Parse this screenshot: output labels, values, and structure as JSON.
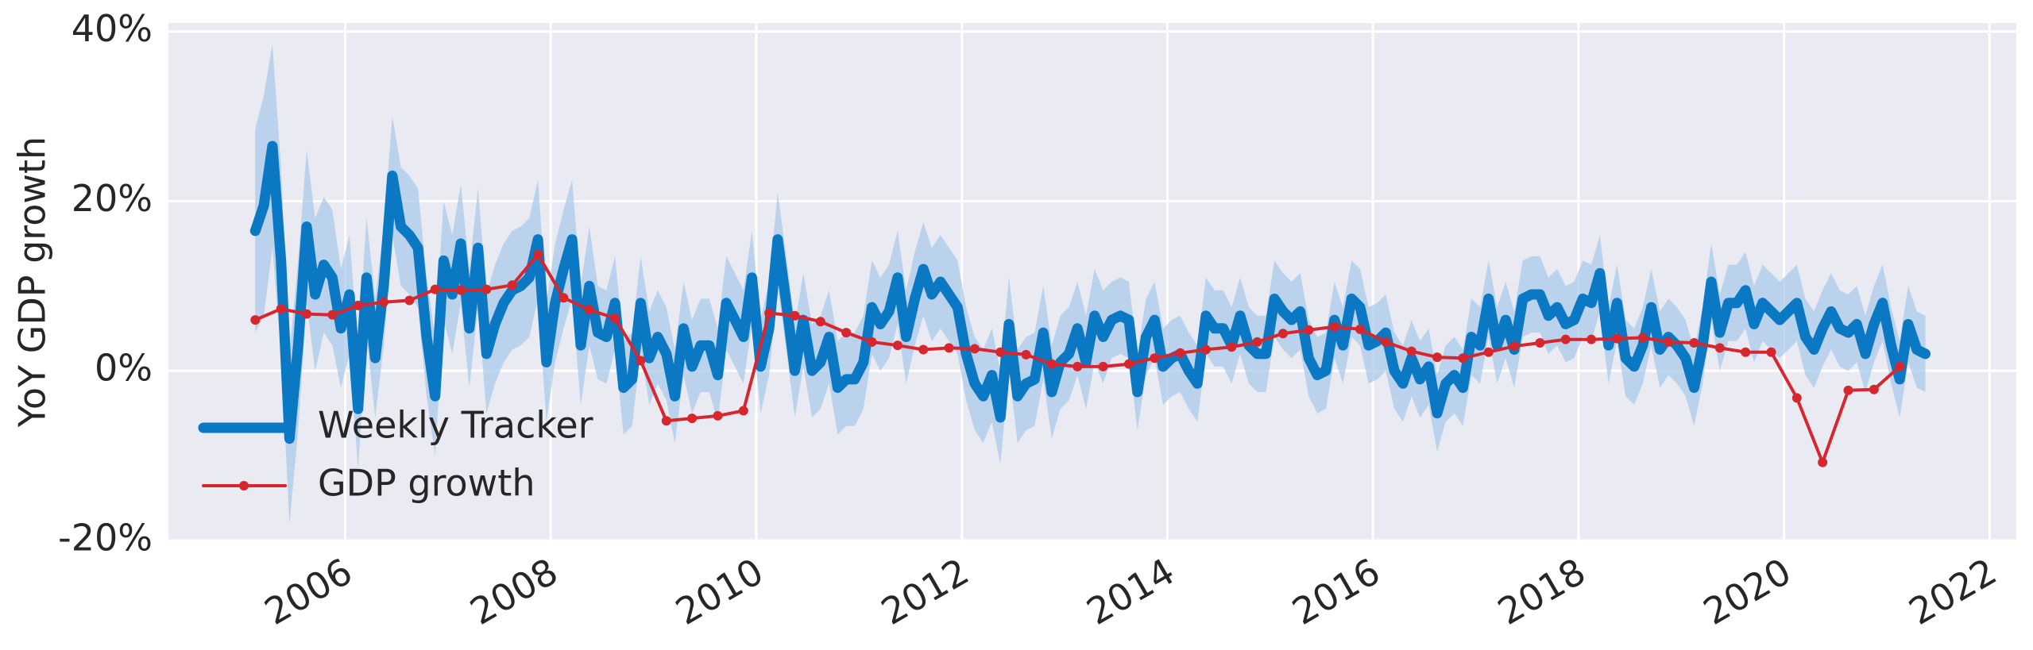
{
  "chart_data": {
    "type": "line",
    "ylabel": "YoY GDP growth",
    "xlim": [
      2004.28,
      2022.26
    ],
    "ylim": [
      -20,
      41
    ],
    "xticks": [
      2006,
      2008,
      2010,
      2012,
      2014,
      2016,
      2018,
      2020,
      2022
    ],
    "yticks": [
      {
        "value": -20,
        "label": "-20%"
      },
      {
        "value": 0,
        "label": "0%"
      },
      {
        "value": 20,
        "label": "20%"
      },
      {
        "value": 40,
        "label": "40%"
      }
    ],
    "grid": true,
    "legend": "lower left",
    "series": [
      {
        "name": "Weekly Tracker",
        "color": "#0a78c2",
        "band_color": "#a9c9ea",
        "x": [
          2005.125,
          2005.208,
          2005.292,
          2005.375,
          2005.458,
          2005.542,
          2005.625,
          2005.708,
          2005.792,
          2005.875,
          2005.958,
          2006.042,
          2006.125,
          2006.208,
          2006.292,
          2006.375,
          2006.458,
          2006.542,
          2006.625,
          2006.708,
          2006.792,
          2006.875,
          2006.958,
          2007.042,
          2007.125,
          2007.208,
          2007.292,
          2007.375,
          2007.458,
          2007.542,
          2007.625,
          2007.708,
          2007.792,
          2007.875,
          2007.958,
          2008.042,
          2008.125,
          2008.208,
          2008.292,
          2008.375,
          2008.458,
          2008.542,
          2008.625,
          2008.708,
          2008.792,
          2008.875,
          2008.958,
          2009.042,
          2009.125,
          2009.208,
          2009.292,
          2009.375,
          2009.458,
          2009.542,
          2009.625,
          2009.708,
          2009.792,
          2009.875,
          2009.958,
          2010.042,
          2010.125,
          2010.208,
          2010.292,
          2010.375,
          2010.458,
          2010.542,
          2010.625,
          2010.708,
          2010.792,
          2010.875,
          2010.958,
          2011.042,
          2011.125,
          2011.208,
          2011.292,
          2011.375,
          2011.458,
          2011.542,
          2011.625,
          2011.708,
          2011.792,
          2011.875,
          2011.958,
          2012.042,
          2012.125,
          2012.208,
          2012.292,
          2012.375,
          2012.458,
          2012.542,
          2012.625,
          2012.708,
          2012.792,
          2012.875,
          2012.958,
          2013.042,
          2013.125,
          2013.208,
          2013.292,
          2013.375,
          2013.458,
          2013.542,
          2013.625,
          2013.708,
          2013.792,
          2013.875,
          2013.958,
          2014.042,
          2014.125,
          2014.208,
          2014.292,
          2014.375,
          2014.458,
          2014.542,
          2014.625,
          2014.708,
          2014.792,
          2014.875,
          2014.958,
          2015.042,
          2015.125,
          2015.208,
          2015.292,
          2015.375,
          2015.458,
          2015.542,
          2015.625,
          2015.708,
          2015.792,
          2015.875,
          2015.958,
          2016.042,
          2016.125,
          2016.208,
          2016.292,
          2016.375,
          2016.458,
          2016.542,
          2016.625,
          2016.708,
          2016.792,
          2016.875,
          2016.958,
          2017.042,
          2017.125,
          2017.208,
          2017.292,
          2017.375,
          2017.458,
          2017.542,
          2017.625,
          2017.708,
          2017.792,
          2017.875,
          2017.958,
          2018.042,
          2018.125,
          2018.208,
          2018.292,
          2018.375,
          2018.458,
          2018.542,
          2018.625,
          2018.708,
          2018.792,
          2018.875,
          2018.958,
          2019.042,
          2019.125,
          2019.208,
          2019.292,
          2019.375,
          2019.458,
          2019.542,
          2019.625,
          2019.708,
          2019.792,
          2019.875,
          2019.958,
          2020.042,
          2020.125,
          2020.208,
          2020.292,
          2020.375,
          2020.458,
          2020.542,
          2020.625,
          2020.708,
          2020.792,
          2020.875,
          2020.958,
          2021.042,
          2021.125,
          2021.208,
          2021.292,
          2021.375
        ],
        "values": [
          16.5,
          19.5,
          26.5,
          13,
          -8,
          3,
          17,
          9,
          12.5,
          11,
          5,
          9,
          -4.5,
          11,
          1.5,
          10,
          23,
          17,
          16,
          14.5,
          4,
          -3,
          13,
          9,
          15,
          5,
          14.5,
          2,
          5.5,
          8,
          9.5,
          10,
          11,
          15.5,
          1,
          8,
          12,
          15.5,
          3,
          10,
          4.5,
          4,
          8,
          -2,
          -1,
          8,
          1.5,
          4,
          2,
          -3,
          5,
          0.5,
          3,
          3,
          -0.5,
          8,
          6,
          4,
          11,
          0.5,
          5,
          15.5,
          8,
          0,
          6,
          0,
          1,
          4,
          -2,
          -1,
          -1,
          1,
          7.5,
          5.5,
          7,
          11,
          4,
          8.5,
          12,
          9,
          10.5,
          9,
          7.5,
          2,
          -1.5,
          -3,
          -0.5,
          -5.5,
          5.5,
          -3,
          -1.5,
          -1,
          4.5,
          -2.5,
          1,
          2,
          5,
          1,
          6.5,
          4,
          6,
          6.5,
          6,
          -2.5,
          4,
          6,
          0.5,
          1.5,
          2,
          0,
          -1.5,
          6.5,
          5,
          5,
          3,
          6.5,
          3,
          2,
          2,
          8.5,
          7,
          6,
          7,
          1.5,
          -0.5,
          0,
          6,
          3,
          8.5,
          7.5,
          3,
          3.5,
          4.5,
          0,
          -1.5,
          1.5,
          -1,
          0.5,
          -5,
          -1.5,
          -0.5,
          -2,
          4,
          3,
          8.5,
          3,
          6,
          2.5,
          8.5,
          9,
          9,
          6.5,
          7.5,
          5.5,
          6,
          8.5,
          8,
          11.5,
          3,
          8,
          1.5,
          0.5,
          3,
          7.5,
          2.5,
          4,
          3,
          1.5,
          -2,
          3,
          10.5,
          4.5,
          8,
          8,
          9.5,
          5.5,
          8,
          7,
          6,
          7,
          8,
          4,
          2.5,
          5,
          7,
          5,
          4.5,
          5.5,
          2,
          5.5,
          8,
          3,
          -1,
          5.5,
          2.5,
          2
        ],
        "errors": [
          12,
          13,
          12,
          11,
          10,
          10,
          9,
          9,
          8,
          8,
          7,
          7,
          7,
          7,
          7,
          7,
          7,
          7,
          7,
          7,
          7,
          7,
          7,
          7,
          7,
          7,
          7,
          7,
          7,
          7,
          7,
          7,
          7,
          7,
          7,
          7,
          7,
          7,
          7,
          7,
          5.5,
          5.5,
          5.5,
          5.5,
          5.5,
          5.5,
          5.5,
          5.5,
          5.5,
          5.5,
          5.5,
          5.5,
          5.5,
          5.5,
          5.5,
          5.5,
          5.5,
          5.5,
          5.5,
          5.5,
          5.5,
          5.5,
          5.5,
          5.5,
          5.5,
          5.5,
          5.5,
          5.5,
          5.5,
          5.5,
          5.5,
          5.5,
          5.5,
          5.5,
          5.5,
          5.5,
          5.5,
          5.5,
          5.5,
          5.5,
          5.5,
          5.5,
          5.5,
          5.5,
          5.5,
          5.5,
          5.5,
          5.5,
          5.5,
          5.5,
          5.5,
          5.5,
          5.5,
          5.5,
          5.5,
          5.5,
          5.5,
          5.5,
          5.5,
          5.5,
          4.5,
          4.5,
          4.5,
          4.5,
          4.5,
          4.5,
          4.5,
          4.5,
          4.5,
          4.5,
          4.5,
          4.5,
          4.5,
          4.5,
          4.5,
          4.5,
          4.5,
          4.5,
          4.5,
          4.5,
          4.5,
          4.5,
          4.5,
          4.5,
          4.5,
          4.5,
          4.5,
          4.5,
          4.5,
          4.5,
          4.5,
          4.5,
          4.5,
          4.5,
          4.5,
          4.5,
          4.5,
          4.5,
          4.5,
          4.5,
          4.5,
          4.5,
          4.5,
          4.5,
          4.5,
          4.5,
          4.5,
          4.5,
          4.5,
          4.5,
          4.5,
          4.5,
          4.5,
          4.5,
          4.5,
          4.5,
          4.5,
          4.5,
          4.5,
          4.5,
          4.5,
          4.5,
          4.5,
          4.5,
          4.5,
          4.5,
          4.5,
          4.5,
          4.5,
          4.5,
          4.5,
          4.5,
          4.5,
          4.5,
          4.5,
          4.5,
          4.5,
          4.5,
          4.5,
          4.5,
          4.5,
          4.5,
          4.5,
          4.5,
          4.5,
          4.5,
          4.5,
          4.5,
          4.5,
          4.5,
          4.5,
          4.5,
          4.5,
          4.5,
          4.5,
          4.5
        ]
      },
      {
        "name": "GDP growth",
        "color": "#d6272e",
        "marker": true,
        "x": [
          2005.125,
          2005.375,
          2005.625,
          2005.875,
          2006.125,
          2006.375,
          2006.625,
          2006.875,
          2007.125,
          2007.375,
          2007.625,
          2007.875,
          2008.125,
          2008.375,
          2008.625,
          2008.875,
          2009.125,
          2009.375,
          2009.625,
          2009.875,
          2010.125,
          2010.375,
          2010.625,
          2010.875,
          2011.125,
          2011.375,
          2011.625,
          2011.875,
          2012.125,
          2012.375,
          2012.625,
          2012.875,
          2013.125,
          2013.375,
          2013.625,
          2013.875,
          2014.125,
          2014.375,
          2014.625,
          2014.875,
          2015.125,
          2015.375,
          2015.625,
          2015.875,
          2016.125,
          2016.375,
          2016.625,
          2016.875,
          2017.125,
          2017.375,
          2017.625,
          2017.875,
          2018.125,
          2018.375,
          2018.625,
          2018.875,
          2019.125,
          2019.375,
          2019.625,
          2019.875,
          2020.125,
          2020.375,
          2020.625,
          2020.875,
          2021.125
        ],
        "values": [
          6,
          7.3,
          6.7,
          6.6,
          7.7,
          8.1,
          8.3,
          9.6,
          9.5,
          9.6,
          10.1,
          13.7,
          8.6,
          7.2,
          6.2,
          1.2,
          -5.9,
          -5.6,
          -5.3,
          -4.7,
          6.8,
          6.5,
          5.8,
          4.5,
          3.4,
          3.0,
          2.5,
          2.7,
          2.6,
          2.2,
          1.9,
          0.8,
          0.5,
          0.5,
          0.8,
          1.5,
          2.1,
          2.5,
          2.8,
          3.4,
          4.4,
          4.8,
          5.2,
          4.9,
          3.4,
          2.3,
          1.6,
          1.5,
          2.2,
          2.9,
          3.3,
          3.7,
          3.7,
          3.8,
          3.9,
          3.4,
          3.3,
          2.7,
          2.2,
          2.2,
          -3.2,
          -10.8,
          -2.3,
          -2.2,
          0.5
        ]
      }
    ]
  }
}
